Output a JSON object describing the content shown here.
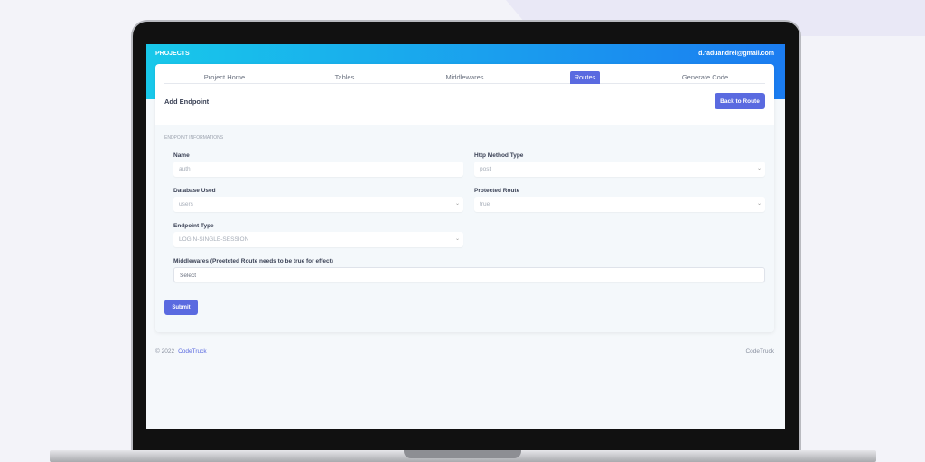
{
  "header": {
    "brand": "PROJECTS",
    "email": "d.raduandrei@gmail.com"
  },
  "tabs": [
    {
      "label": "Project Home"
    },
    {
      "label": "Tables"
    },
    {
      "label": "Middlewares"
    },
    {
      "label": "Routes",
      "active": true
    },
    {
      "label": "Generate Code"
    }
  ],
  "page": {
    "title": "Add Endpoint",
    "back_label": "Back to Route",
    "section": "ENDPOINT INFORMATIONS"
  },
  "form": {
    "name": {
      "label": "Name",
      "value": "auth"
    },
    "method": {
      "label": "Http Method Type",
      "value": "post"
    },
    "database": {
      "label": "Database Used",
      "value": "users"
    },
    "protected": {
      "label": "Protected Route",
      "value": "true"
    },
    "endpoint_type": {
      "label": "Endpoint Type",
      "value": "LOGIN-SINGLE-SESSION"
    },
    "middlewares": {
      "label": "Middlewares (Proetcted Route needs to be true for effect)",
      "placeholder": "Select"
    },
    "submit_label": "Submit"
  },
  "footer": {
    "copyright": "© 2022",
    "brand_link": "CodeTruck",
    "right": "CodeTruck"
  },
  "colors": {
    "accent": "#5a6ae0",
    "header_start": "#18c8ea",
    "header_end": "#1b7cf1"
  }
}
